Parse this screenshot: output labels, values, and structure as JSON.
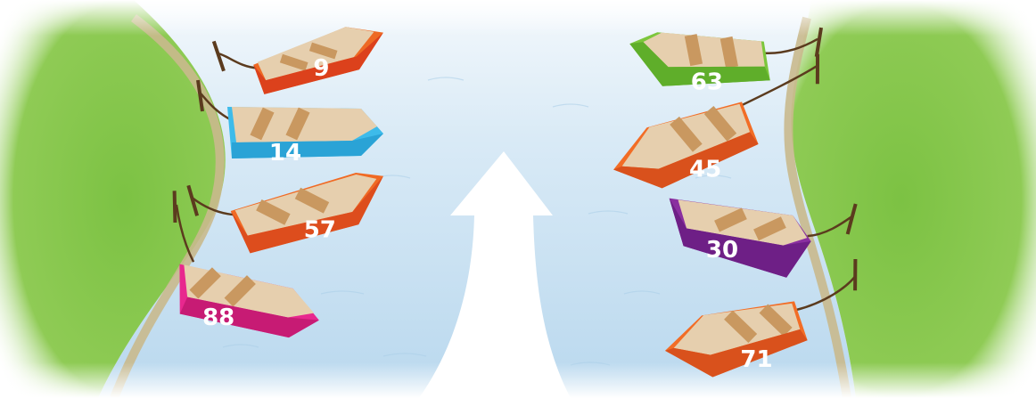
{
  "colors": {
    "water_light": "#e9f3fb",
    "water": "#bfdcf0",
    "grass": "#8cc84b",
    "grass_dark": "#6fb03a",
    "bank_sand": "#c9b98d",
    "arrow": "#ffffff",
    "rope": "#5b3b1e",
    "seat_wood": "#c99860"
  },
  "boats": [
    {
      "id": "boat-9",
      "number": "9",
      "side": "left",
      "hull_color": "#ee6a24",
      "hull_shade": "#d83a1b",
      "icon": "rowboat-icon"
    },
    {
      "id": "boat-14",
      "number": "14",
      "side": "left",
      "hull_color": "#3dbbea",
      "hull_shade": "#2aa3d6",
      "icon": "rowboat-icon"
    },
    {
      "id": "boat-57",
      "number": "57",
      "side": "left",
      "hull_color": "#f06a24",
      "hull_shade": "#d9481c",
      "icon": "rowboat-icon"
    },
    {
      "id": "boat-88",
      "number": "88",
      "side": "left",
      "hull_color": "#e8288e",
      "hull_shade": "#c71b74",
      "icon": "rowboat-icon"
    },
    {
      "id": "boat-63",
      "number": "63",
      "side": "right",
      "hull_color": "#7cc63c",
      "hull_shade": "#5fae2a",
      "icon": "rowboat-icon"
    },
    {
      "id": "boat-45",
      "number": "45",
      "side": "right",
      "hull_color": "#f26d26",
      "hull_shade": "#d9511c",
      "icon": "rowboat-icon"
    },
    {
      "id": "boat-30",
      "number": "30",
      "side": "right",
      "hull_color": "#8a2fa0",
      "hull_shade": "#6e1f86",
      "icon": "rowboat-icon"
    },
    {
      "id": "boat-71",
      "number": "71",
      "side": "right",
      "hull_color": "#f26d26",
      "hull_shade": "#d9511c",
      "icon": "rowboat-icon"
    }
  ],
  "arrow": {
    "icon": "up-arrow-icon",
    "direction": "up"
  }
}
